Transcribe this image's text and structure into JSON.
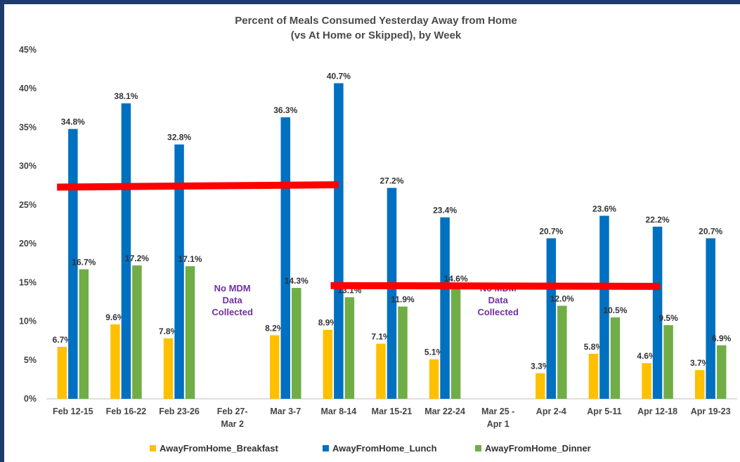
{
  "chart_data": {
    "type": "bar",
    "title": "Percent of Meals Consumed Yesterday Away from Home",
    "subtitle": "(vs At Home or Skipped), by Week",
    "categories": [
      [
        "Feb 12-15"
      ],
      [
        "Feb 16-22"
      ],
      [
        "Feb 23-26"
      ],
      [
        "Feb 27-",
        "Mar 2"
      ],
      [
        "Mar 3-7"
      ],
      [
        "Mar 8-14"
      ],
      [
        "Mar 15-21"
      ],
      [
        "Mar 22-24"
      ],
      [
        "Mar 25 -",
        "Apr 1"
      ],
      [
        "Apr 2-4"
      ],
      [
        "Apr 5-11"
      ],
      [
        "Apr 12-18"
      ],
      [
        "Apr 19-23"
      ]
    ],
    "series": [
      {
        "name": "AwayFromHome_Breakfast",
        "color": "#ffc000",
        "values": [
          6.7,
          9.6,
          7.8,
          null,
          8.2,
          8.9,
          7.1,
          5.1,
          null,
          3.3,
          5.8,
          4.6,
          3.7
        ]
      },
      {
        "name": "AwayFromHome_Lunch",
        "color": "#0070c0",
        "values": [
          34.8,
          38.1,
          32.8,
          null,
          36.3,
          40.7,
          27.2,
          23.4,
          null,
          20.7,
          23.6,
          22.2,
          20.7
        ]
      },
      {
        "name": "AwayFromHome_Dinner",
        "color": "#70ad47",
        "values": [
          16.7,
          17.2,
          17.1,
          null,
          14.3,
          13.1,
          11.9,
          14.6,
          null,
          12.0,
          10.5,
          9.5,
          6.9
        ]
      }
    ],
    "ylim": [
      0,
      45
    ],
    "yticks": [
      0,
      5,
      10,
      15,
      20,
      25,
      30,
      35,
      40,
      45
    ],
    "tick_suffix": "%",
    "annotations": [
      {
        "category_index": 3,
        "lines": [
          "No MDM",
          "Data",
          "Collected"
        ]
      },
      {
        "category_index": 8,
        "lines": [
          "No MDM",
          "Data",
          "Collected"
        ]
      }
    ],
    "overlay_lines": [
      {
        "color": "#ff0000",
        "x_from": -0.3,
        "x_to": 5.0,
        "y_from": 27.3,
        "y_to": 27.6
      },
      {
        "color": "#ff0000",
        "x_from": 4.85,
        "x_to": 11.05,
        "y_from": 14.6,
        "y_to": 14.5
      }
    ],
    "legend_position": "bottom",
    "grid": false
  }
}
